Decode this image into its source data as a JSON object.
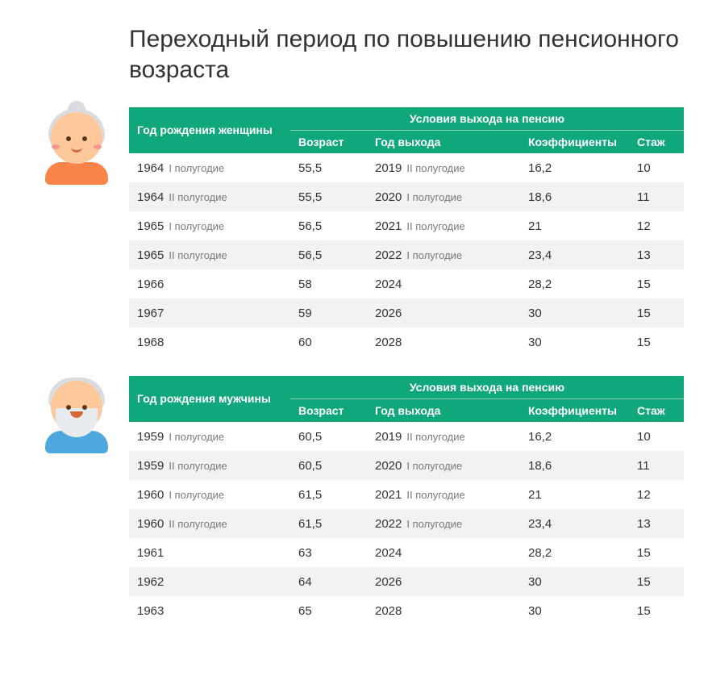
{
  "title": "Переходный период по повышению пенсионного возраста",
  "colors": {
    "header_bg": "#11a77d",
    "header_text": "#ffffff",
    "row_stripe": "#f1f2f3",
    "text": "#333333",
    "sub_note": "#7a7a7a",
    "women_hair": "#d9dde2",
    "men_hair": "#d9dde2",
    "shirt_women": "#f9844a",
    "shirt_men": "#4ea8de",
    "skin": "#fec89a"
  },
  "tables": {
    "women": {
      "left_header": "Год рождения женщины",
      "group_header": "Условия выхода на пенсию",
      "columns": [
        "Возраст",
        "Год выхода",
        "Коэффициенты",
        "Стаж"
      ],
      "rows": [
        {
          "birth_year": "1964",
          "birth_half": "I полугодие",
          "age": "55,5",
          "exit_year": "2019",
          "exit_half": "II полугодие",
          "coef": "16,2",
          "stage": "10"
        },
        {
          "birth_year": "1964",
          "birth_half": "II полугодие",
          "age": "55,5",
          "exit_year": "2020",
          "exit_half": "I полугодие",
          "coef": "18,6",
          "stage": "11"
        },
        {
          "birth_year": "1965",
          "birth_half": "I полугодие",
          "age": "56,5",
          "exit_year": "2021",
          "exit_half": "II полугодие",
          "coef": "21",
          "stage": "12"
        },
        {
          "birth_year": "1965",
          "birth_half": "II полугодие",
          "age": "56,5",
          "exit_year": "2022",
          "exit_half": "I полугодие",
          "coef": "23,4",
          "stage": "13"
        },
        {
          "birth_year": "1966",
          "birth_half": "",
          "age": "58",
          "exit_year": "2024",
          "exit_half": "",
          "coef": "28,2",
          "stage": "15"
        },
        {
          "birth_year": "1967",
          "birth_half": "",
          "age": "59",
          "exit_year": "2026",
          "exit_half": "",
          "coef": "30",
          "stage": "15"
        },
        {
          "birth_year": "1968",
          "birth_half": "",
          "age": "60",
          "exit_year": "2028",
          "exit_half": "",
          "coef": "30",
          "stage": "15"
        }
      ]
    },
    "men": {
      "left_header": "Год рождения мужчины",
      "group_header": "Условия выхода на пенсию",
      "columns": [
        "Возраст",
        "Год выхода",
        "Коэффициенты",
        "Стаж"
      ],
      "rows": [
        {
          "birth_year": "1959",
          "birth_half": "I полугодие",
          "age": "60,5",
          "exit_year": "2019",
          "exit_half": "II полугодие",
          "coef": "16,2",
          "stage": "10"
        },
        {
          "birth_year": "1959",
          "birth_half": "II полугодие",
          "age": "60,5",
          "exit_year": "2020",
          "exit_half": "I полугодие",
          "coef": "18,6",
          "stage": "11"
        },
        {
          "birth_year": "1960",
          "birth_half": "I полугодие",
          "age": "61,5",
          "exit_year": "2021",
          "exit_half": "II полугодие",
          "coef": "21",
          "stage": "12"
        },
        {
          "birth_year": "1960",
          "birth_half": "II полугодие",
          "age": "61,5",
          "exit_year": "2022",
          "exit_half": "I полугодие",
          "coef": "23,4",
          "stage": "13"
        },
        {
          "birth_year": "1961",
          "birth_half": "",
          "age": "63",
          "exit_year": "2024",
          "exit_half": "",
          "coef": "28,2",
          "stage": "15"
        },
        {
          "birth_year": "1962",
          "birth_half": "",
          "age": "64",
          "exit_year": "2026",
          "exit_half": "",
          "coef": "30",
          "stage": "15"
        },
        {
          "birth_year": "1963",
          "birth_half": "",
          "age": "65",
          "exit_year": "2028",
          "exit_half": "",
          "coef": "30",
          "stage": "15"
        }
      ]
    }
  }
}
